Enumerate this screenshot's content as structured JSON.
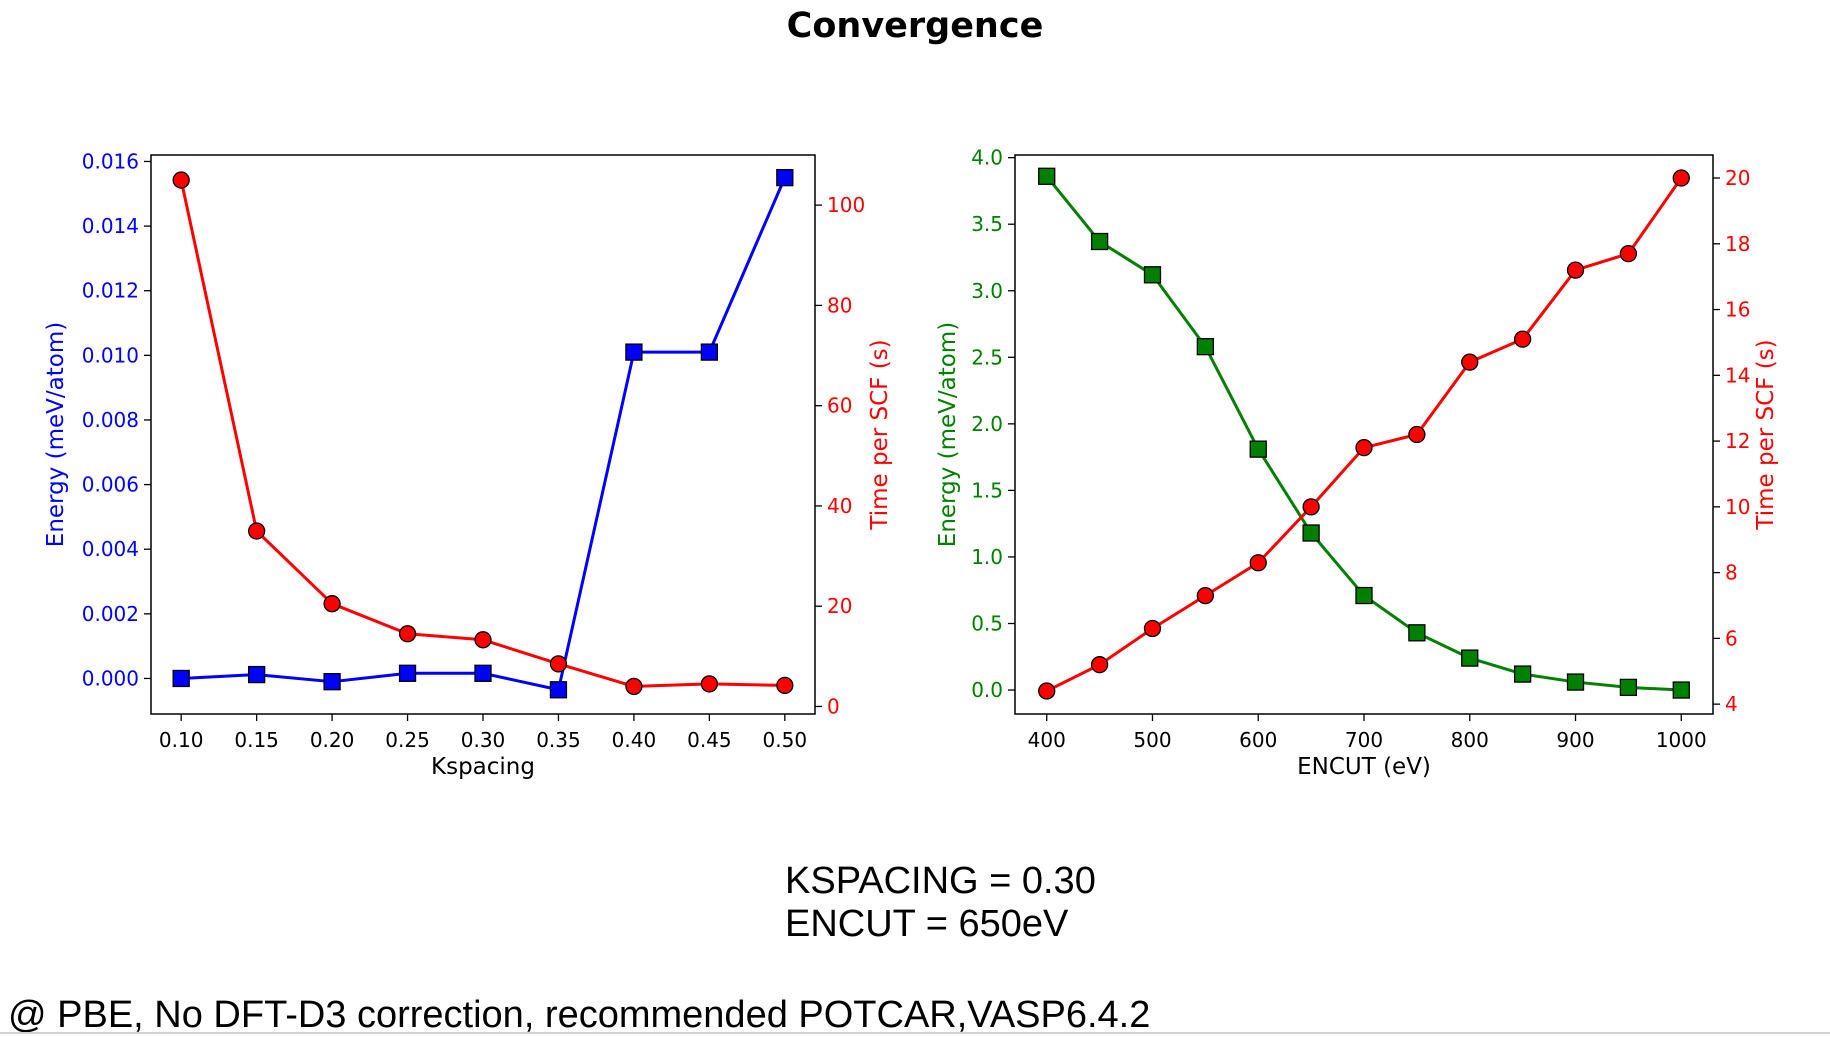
{
  "title": "Convergence",
  "notes": [
    "KSPACING = 0.30",
    "ENCUT = 650eV"
  ],
  "footnote": "@ PBE, No DFT-D3 correction, recommended POTCAR,VASP6.4.2",
  "chart_data": [
    {
      "type": "line",
      "xlabel": "Kspacing",
      "ylabel_left": "Energy (meV/atom)",
      "ylabel_right": "Time per SCF (s)",
      "x": [
        0.1,
        0.15,
        0.2,
        0.25,
        0.3,
        0.35,
        0.4,
        0.45,
        0.5
      ],
      "xticks": [
        "0.10",
        "0.15",
        "0.20",
        "0.25",
        "0.30",
        "0.35",
        "0.40",
        "0.45",
        "0.50"
      ],
      "xlim": [
        0.08,
        0.52
      ],
      "left_axis": {
        "color": "#0000ff",
        "ylim": [
          -0.0011,
          0.0162
        ],
        "ticks": [
          0,
          0.002,
          0.004,
          0.006,
          0.008,
          0.01,
          0.012,
          0.014,
          0.016
        ],
        "tick_labels": [
          "0.000",
          "0.002",
          "0.004",
          "0.006",
          "0.008",
          "0.010",
          "0.012",
          "0.014",
          "0.016"
        ]
      },
      "right_axis": {
        "color": "#ff0000",
        "ylim": [
          -1.5,
          110
        ],
        "ticks": [
          0,
          20,
          40,
          60,
          80,
          100
        ],
        "tick_labels": [
          "0",
          "20",
          "40",
          "60",
          "80",
          "100"
        ]
      },
      "series": [
        {
          "axis": "left",
          "marker": "square",
          "line_color": "#0000ff",
          "marker_color": "#0000ff",
          "values": [
            0.0,
            0.00012,
            -0.0001,
            0.00016,
            0.00016,
            -0.00035,
            0.0101,
            0.0101,
            0.0155
          ]
        },
        {
          "axis": "right",
          "marker": "circle",
          "line_color": "#ff0000",
          "marker_color": "#ff0000",
          "values": [
            105,
            35,
            20.5,
            14.5,
            13.3,
            8.5,
            4.0,
            4.5,
            4.2
          ]
        }
      ]
    },
    {
      "type": "line",
      "xlabel": "ENCUT (eV)",
      "ylabel_left": "Energy (meV/atom)",
      "ylabel_right": "Time per SCF (s)",
      "x": [
        400,
        450,
        500,
        550,
        600,
        650,
        700,
        750,
        800,
        850,
        900,
        950,
        1000
      ],
      "xticks": [
        "400",
        "500",
        "600",
        "700",
        "800",
        "900",
        "1000"
      ],
      "xtick_values": [
        400,
        500,
        600,
        700,
        800,
        900,
        1000
      ],
      "xlim": [
        370,
        1030
      ],
      "left_axis": {
        "color": "#008000",
        "ylim": [
          -0.18,
          4.02
        ],
        "ticks": [
          0,
          0.5,
          1.0,
          1.5,
          2.0,
          2.5,
          3.0,
          3.5,
          4.0
        ],
        "tick_labels": [
          "0.0",
          "0.5",
          "1.0",
          "1.5",
          "2.0",
          "2.5",
          "3.0",
          "3.5",
          "4.0"
        ]
      },
      "right_axis": {
        "color": "#ff0000",
        "ylim": [
          3.7,
          20.7
        ],
        "ticks": [
          4,
          6,
          8,
          10,
          12,
          14,
          16,
          18,
          20
        ],
        "tick_labels": [
          "4",
          "6",
          "8",
          "10",
          "12",
          "14",
          "16",
          "18",
          "20"
        ]
      },
      "series": [
        {
          "axis": "left",
          "marker": "square",
          "line_color": "#008000",
          "marker_color": "#008000",
          "values": [
            3.86,
            3.37,
            3.12,
            2.58,
            1.81,
            1.18,
            0.71,
            0.43,
            0.24,
            0.12,
            0.06,
            0.02,
            0.0
          ]
        },
        {
          "axis": "right",
          "marker": "circle",
          "line_color": "#ff0000",
          "marker_color": "#ff0000",
          "values": [
            4.4,
            5.2,
            6.3,
            7.3,
            8.3,
            10.0,
            11.8,
            12.2,
            14.4,
            15.1,
            17.2,
            17.7,
            20.0
          ]
        }
      ]
    }
  ]
}
